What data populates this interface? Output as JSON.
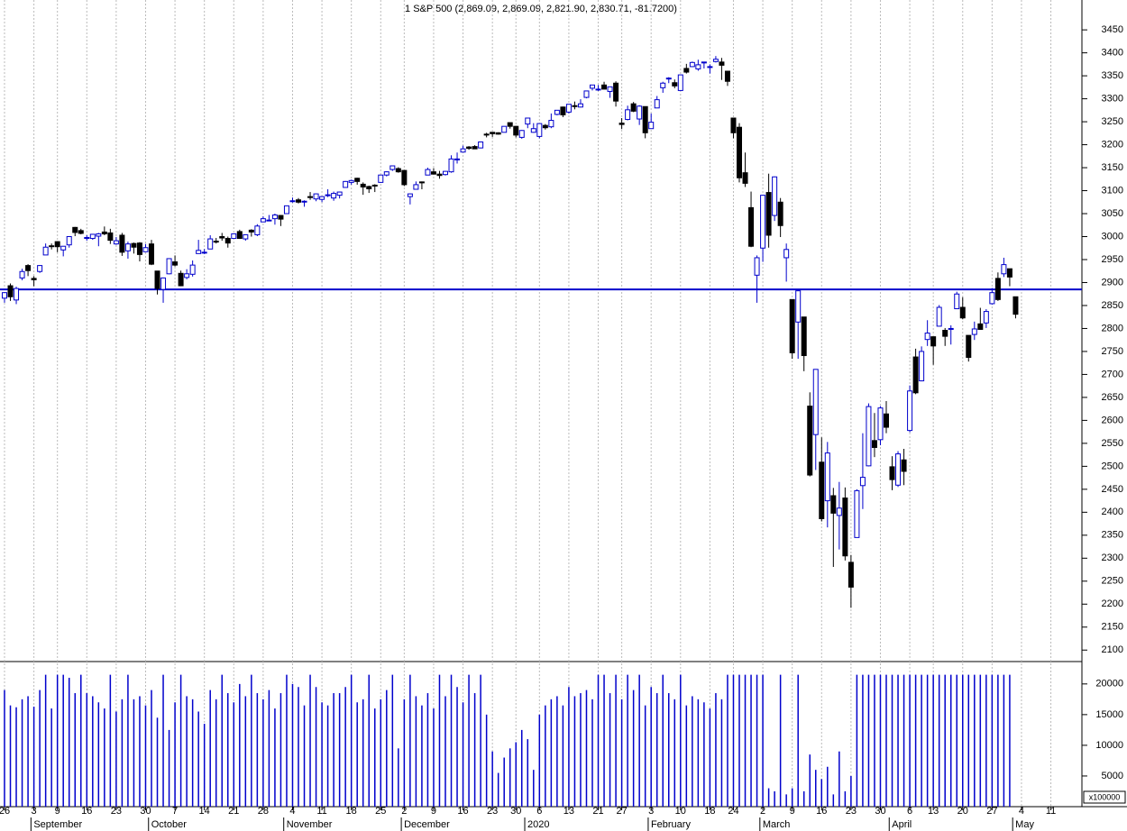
{
  "chart_data": {
    "type": "candlestick",
    "title": "1 S&P 500 (2,869.09, 2,869.09, 2,821.90, 2,830.71, -81.7200)",
    "up_color": "#0000cc",
    "down_color": "#000000",
    "open": [
      2866,
      2893,
      2862,
      2910,
      2937,
      2909,
      2924,
      2960,
      2980,
      2989,
      2971,
      2982,
      3020,
      3013,
      2997,
      2996,
      3001,
      3010,
      3008,
      2984,
      3003,
      2969,
      2985,
      2986,
      2967,
      2984,
      2925,
      2885,
      2919,
      2945,
      2920,
      2911,
      2918,
      2963,
      2965,
      2973,
      2990,
      3000,
      2996,
      2996,
      3011,
      2995,
      3014,
      3004,
      3032,
      3036,
      3039,
      3046,
      3050,
      3078,
      3080,
      3076,
      3087,
      3082,
      3081,
      3089,
      3084,
      3090,
      3107,
      3118,
      3127,
      3114,
      3109,
      3112,
      3118,
      3134,
      3146,
      3148,
      3144,
      3087,
      3103,
      3119,
      3134,
      3141,
      3136,
      3135,
      3141,
      3167,
      3184,
      3195,
      3196,
      3193,
      3223,
      3227,
      3226,
      3227,
      3248,
      3240,
      3216,
      3245,
      3227,
      3218,
      3242,
      3239,
      3266,
      3282,
      3271,
      3285,
      3282,
      3303,
      3323,
      3321,
      3330,
      3316,
      3334,
      3247,
      3255,
      3289,
      3256,
      3283,
      3235,
      3280,
      3324,
      3344,
      3335,
      3318,
      3366,
      3370,
      3365,
      3378,
      3370,
      3381,
      3380,
      3360,
      3258,
      3238,
      3139,
      3063,
      2916,
      2975,
      3096,
      3046,
      3075,
      2954,
      2863,
      2814,
      2825,
      2631,
      2569,
      2509,
      2425,
      2436,
      2393,
      2431,
      2291,
      2345,
      2458,
      2501,
      2556,
      2558,
      2614,
      2499,
      2459,
      2514,
      2578,
      2738,
      2686,
      2776,
      2782,
      2805,
      2796,
      2799,
      2843,
      2846,
      2785,
      2787,
      2810,
      2812,
      2854,
      2909,
      2919,
      2930,
      2869
    ],
    "high": [
      2879,
      2898,
      2891,
      2930,
      2940,
      2914,
      2938,
      2985,
      2985,
      2990,
      2979,
      3001,
      3021,
      3017,
      3003,
      3006,
      3008,
      3022,
      3017,
      2999,
      3008,
      2989,
      2987,
      2988,
      2984,
      2993,
      2925,
      2911,
      2953,
      2959,
      2926,
      2929,
      2948,
      2993,
      2973,
      3003,
      2997,
      3008,
      3000,
      3007,
      3015,
      3005,
      3016,
      3027,
      3044,
      3047,
      3050,
      3047,
      3067,
      3085,
      3084,
      3079,
      3097,
      3094,
      3088,
      3103,
      3098,
      3098,
      3121,
      3124,
      3128,
      3118,
      3111,
      3114,
      3133,
      3142,
      3155,
      3151,
      3145,
      3094,
      3120,
      3120,
      3150,
      3149,
      3143,
      3143,
      3177,
      3183,
      3198,
      3197,
      3199,
      3206,
      3226,
      3227,
      3227,
      3240,
      3248,
      3241,
      3232,
      3258,
      3247,
      3246,
      3245,
      3268,
      3275,
      3283,
      3288,
      3294,
      3299,
      3316,
      3330,
      3330,
      3337,
      3326,
      3338,
      3258,
      3285,
      3293,
      3286,
      3283,
      3268,
      3306,
      3337,
      3347,
      3342,
      3352,
      3376,
      3381,
      3385,
      3380,
      3375,
      3393,
      3389,
      3360,
      3259,
      3247,
      3183,
      3098,
      2959,
      3091,
      3137,
      3131,
      3084,
      2985,
      2863,
      2883,
      2825,
      2661,
      2711,
      2563,
      2553,
      2453,
      2466,
      2454,
      2307,
      2450,
      2572,
      2637,
      2616,
      2631,
      2642,
      2522,
      2533,
      2538,
      2676,
      2756,
      2761,
      2818,
      2782,
      2851,
      2801,
      2807,
      2880,
      2868,
      2785,
      2815,
      2845,
      2842,
      2888,
      2922,
      2954,
      2930,
      2869
    ],
    "low": [
      2856,
      2860,
      2853,
      2905,
      2914,
      2892,
      2921,
      2960,
      2972,
      2966,
      2957,
      2976,
      3001,
      3005,
      2991,
      2993,
      2979,
      3003,
      2984,
      2982,
      2958,
      2952,
      2963,
      2946,
      2967,
      2938,
      2874,
      2856,
      2918,
      2935,
      2892,
      2907,
      2913,
      2963,
      2962,
      2973,
      2985,
      2991,
      2976,
      2995,
      2995,
      2991,
      3000,
      3001,
      3032,
      3034,
      3026,
      3023,
      3050,
      3074,
      3072,
      3065,
      3080,
      3077,
      3075,
      3086,
      3078,
      3083,
      3107,
      3113,
      3113,
      3091,
      3095,
      3097,
      3117,
      3131,
      3143,
      3139,
      3110,
      3070,
      3102,
      3103,
      3134,
      3135,
      3126,
      3133,
      3139,
      3159,
      3183,
      3189,
      3191,
      3192,
      3216,
      3217,
      3222,
      3227,
      3235,
      3216,
      3213,
      3236,
      3226,
      3214,
      3233,
      3236,
      3264,
      3260,
      3268,
      3277,
      3281,
      3301,
      3318,
      3317,
      3321,
      3302,
      3283,
      3234,
      3253,
      3271,
      3243,
      3214,
      3235,
      3280,
      3313,
      3334,
      3323,
      3317,
      3355,
      3369,
      3361,
      3366,
      3355,
      3379,
      3341,
      3328,
      3214,
      3118,
      3108,
      2977,
      2856,
      2945,
      2976,
      3034,
      2999,
      2902,
      2734,
      2734,
      2707,
      2478,
      2492,
      2380,
      2367,
      2281,
      2319,
      2295,
      2192,
      2345,
      2407,
      2500,
      2520,
      2546,
      2572,
      2448,
      2455,
      2459,
      2574,
      2657,
      2685,
      2762,
      2721,
      2805,
      2762,
      2765,
      2843,
      2820,
      2728,
      2775,
      2798,
      2801,
      2852,
      2860,
      2912,
      2892,
      2822
    ],
    "close": [
      2878,
      2869,
      2887,
      2924,
      2926,
      2906,
      2937,
      2977,
      2979,
      2978,
      2979,
      3000,
      3009,
      3007,
      2998,
      3005,
      3006,
      3006,
      2992,
      2991,
      2966,
      2984,
      2977,
      2961,
      2976,
      2940,
      2887,
      2910,
      2952,
      2938,
      2893,
      2919,
      2938,
      2970,
      2966,
      2995,
      2989,
      2997,
      2986,
      3006,
      2996,
      3004,
      3010,
      3023,
      3039,
      3036,
      3047,
      3038,
      3067,
      3078,
      3075,
      3077,
      3085,
      3093,
      3087,
      3091,
      3094,
      3097,
      3120,
      3122,
      3120,
      3108,
      3104,
      3110,
      3134,
      3141,
      3154,
      3141,
      3113,
      3093,
      3113,
      3117,
      3146,
      3136,
      3133,
      3142,
      3169,
      3169,
      3191,
      3192,
      3191,
      3206,
      3221,
      3224,
      3223,
      3240,
      3240,
      3221,
      3231,
      3258,
      3235,
      3246,
      3237,
      3253,
      3275,
      3265,
      3288,
      3283,
      3289,
      3317,
      3330,
      3321,
      3321,
      3326,
      3295,
      3244,
      3276,
      3273,
      3284,
      3226,
      3249,
      3298,
      3334,
      3345,
      3328,
      3352,
      3358,
      3379,
      3374,
      3380,
      3370,
      3386,
      3373,
      3338,
      3226,
      3128,
      3116,
      2979,
      2954,
      3090,
      3003,
      3130,
      3024,
      2972,
      2747,
      2882,
      2741,
      2481,
      2711,
      2386,
      2529,
      2398,
      2409,
      2305,
      2237,
      2447,
      2476,
      2630,
      2541,
      2627,
      2585,
      2471,
      2527,
      2489,
      2664,
      2660,
      2750,
      2790,
      2762,
      2846,
      2783,
      2800,
      2875,
      2823,
      2737,
      2799,
      2798,
      2837,
      2878,
      2863,
      2939,
      2912,
      2831
    ],
    "reference_line": {
      "value": 2885,
      "color": "#0000cc"
    },
    "ylim": [
      2075,
      3515
    ],
    "yticks": [
      2100,
      2150,
      2200,
      2250,
      2300,
      2350,
      2400,
      2450,
      2500,
      2550,
      2600,
      2650,
      2700,
      2750,
      2800,
      2850,
      2900,
      2950,
      3000,
      3050,
      3100,
      3150,
      3200,
      3250,
      3300,
      3350,
      3400,
      3450
    ],
    "grid": true,
    "xticks": [
      {
        "value": 0,
        "label": "26"
      },
      {
        "value": 5,
        "label": "3"
      },
      {
        "value": 9,
        "label": "9"
      },
      {
        "value": 14,
        "label": "16"
      },
      {
        "value": 19,
        "label": "23"
      },
      {
        "value": 24,
        "label": "30"
      },
      {
        "value": 29,
        "label": "7"
      },
      {
        "value": 34,
        "label": "14"
      },
      {
        "value": 39,
        "label": "21"
      },
      {
        "value": 44,
        "label": "28"
      },
      {
        "value": 49,
        "label": "4"
      },
      {
        "value": 54,
        "label": "11"
      },
      {
        "value": 59,
        "label": "18"
      },
      {
        "value": 64,
        "label": "25"
      },
      {
        "value": 68,
        "label": "2"
      },
      {
        "value": 73,
        "label": "9"
      },
      {
        "value": 78,
        "label": "16"
      },
      {
        "value": 83,
        "label": "23"
      },
      {
        "value": 87,
        "label": "30"
      },
      {
        "value": 91,
        "label": "6"
      },
      {
        "value": 96,
        "label": "13"
      },
      {
        "value": 101,
        "label": "21"
      },
      {
        "value": 105,
        "label": "27"
      },
      {
        "value": 110,
        "label": "3"
      },
      {
        "value": 115,
        "label": "10"
      },
      {
        "value": 120,
        "label": "18"
      },
      {
        "value": 124,
        "label": "24"
      },
      {
        "value": 129,
        "label": "2"
      },
      {
        "value": 134,
        "label": "9"
      },
      {
        "value": 139,
        "label": "16"
      },
      {
        "value": 144,
        "label": "23"
      },
      {
        "value": 149,
        "label": "30"
      },
      {
        "value": 154,
        "label": "6"
      },
      {
        "value": 158,
        "label": "13"
      },
      {
        "value": 163,
        "label": "20"
      },
      {
        "value": 168,
        "label": "27"
      },
      {
        "value": 173,
        "label": "4"
      },
      {
        "value": 178,
        "label": "11"
      }
    ],
    "month_labels": [
      {
        "value": 5,
        "label": "September"
      },
      {
        "value": 25,
        "label": "October"
      },
      {
        "value": 48,
        "label": "November"
      },
      {
        "value": 68,
        "label": "December"
      },
      {
        "value": 89,
        "label": "2020"
      },
      {
        "value": 110,
        "label": "February"
      },
      {
        "value": 129,
        "label": "March"
      },
      {
        "value": 151,
        "label": "April"
      },
      {
        "value": 172,
        "label": "May"
      }
    ],
    "volume": {
      "color": "#0000cc",
      "unit_label": "x100000",
      "ylim": [
        0,
        23500
      ],
      "yticks": [
        5000,
        10000,
        15000,
        20000
      ],
      "values": [
        19000,
        16500,
        16200,
        17500,
        18000,
        16300,
        19000,
        21500,
        16000,
        21500,
        21500,
        21000,
        18500,
        21500,
        18500,
        18000,
        17000,
        16000,
        21500,
        15500,
        17500,
        21500,
        17500,
        18000,
        16500,
        19000,
        14500,
        21500,
        12500,
        17000,
        21500,
        18000,
        17500,
        15500,
        13500,
        19000,
        17500,
        21500,
        18500,
        17000,
        20000,
        18000,
        21500,
        18500,
        17500,
        19000,
        16000,
        18500,
        21500,
        20000,
        19500,
        16500,
        21500,
        19500,
        17000,
        16500,
        18500,
        18500,
        19500,
        21500,
        17000,
        17500,
        21500,
        16000,
        17500,
        19000,
        21500,
        9500,
        17500,
        21500,
        18000,
        16500,
        18500,
        16000,
        21500,
        18000,
        21500,
        19500,
        17000,
        21500,
        18500,
        21500,
        15000,
        9000,
        5500,
        8000,
        9500,
        10500,
        12500,
        11000,
        6000,
        15000,
        16500,
        17500,
        18000,
        16500,
        19500,
        18000,
        18500,
        19000,
        17500,
        21500,
        21500,
        18500,
        21500,
        17500,
        21500,
        19000,
        21500,
        16500,
        19500,
        18500,
        21500,
        18500,
        17500,
        21500,
        16500,
        18000,
        17500,
        17000,
        16000,
        18500,
        17500,
        21500,
        21500,
        21500,
        21500,
        21500,
        21500,
        21500,
        3000,
        2500,
        21500,
        2000,
        3000,
        21500,
        2500,
        8500,
        6000,
        4500,
        6500,
        2000,
        9000,
        2500,
        5000,
        21500,
        21500,
        21500,
        21500,
        21500,
        21500,
        21500,
        21500,
        21500,
        21500,
        21500,
        21500,
        21500,
        21500,
        21500,
        21500,
        21500,
        21500,
        21500,
        21500,
        21500,
        21500,
        21500,
        21500,
        21500,
        21500,
        21500
      ]
    }
  }
}
